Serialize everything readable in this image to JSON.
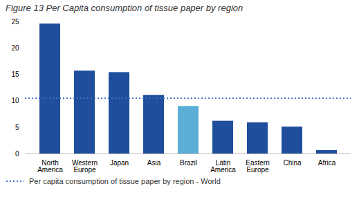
{
  "chart_data": {
    "type": "bar",
    "title": "Figure 13 Per Capita consumption of tissue paper by region",
    "categories": [
      "North\nAmerica",
      "Western\nEurope",
      "Japan",
      "Asia",
      "Brazil",
      "Latin\nAmerica",
      "Eastern\nEurope",
      "China",
      "Africa"
    ],
    "values": [
      24.6,
      15.7,
      15.4,
      11.1,
      9.0,
      6.2,
      5.9,
      5.1,
      0.65
    ],
    "colors": [
      "#1f4e9c",
      "#1f4e9c",
      "#1f4e9c",
      "#1f4e9c",
      "#5bafd6",
      "#1f4e9c",
      "#1f4e9c",
      "#1f4e9c",
      "#1f4e9c"
    ],
    "series": [
      {
        "name": "Per capita consumption of tissue paper by region - World",
        "type": "line",
        "line_style": "dotted",
        "color": "#4472c4",
        "values": [
          10.5,
          10.5,
          10.5,
          10.5,
          10.5,
          10.5,
          10.5,
          10.5,
          10.5
        ]
      }
    ],
    "ylim": [
      0,
      25
    ],
    "yticks": [
      0,
      5,
      10,
      15,
      20,
      25
    ],
    "grid": false,
    "legend": "bottom"
  }
}
